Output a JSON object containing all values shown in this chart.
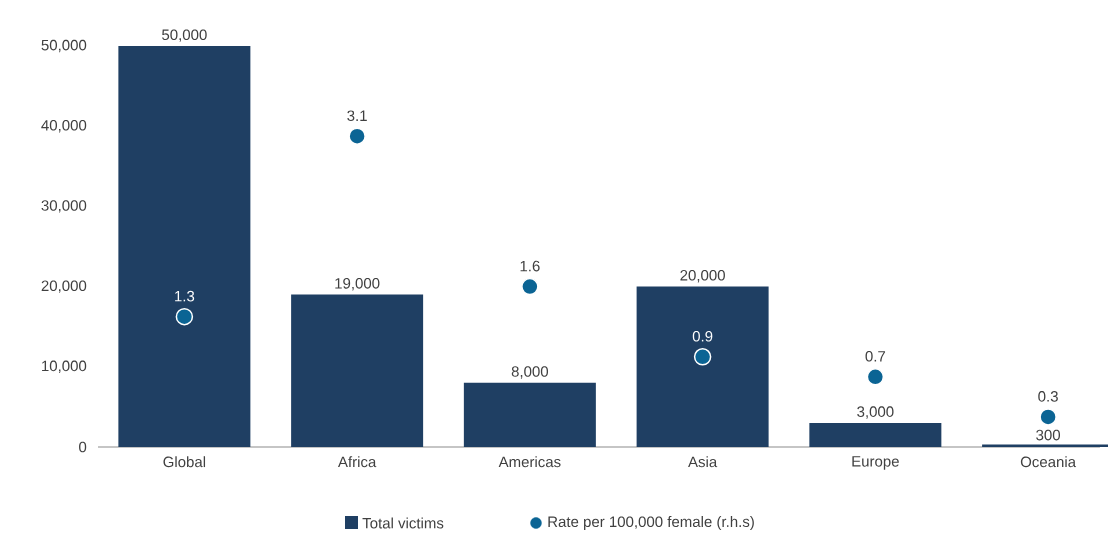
{
  "chart_data": {
    "type": "bar",
    "categories": [
      "Global",
      "Africa",
      "Americas",
      "Asia",
      "Europe",
      "Oceania"
    ],
    "series": [
      {
        "name": "Total victims",
        "color": "#1f3f63",
        "values": [
          50000,
          19000,
          8000,
          20000,
          3000,
          300
        ],
        "value_labels": [
          "50,000",
          "19,000",
          "8,000",
          "20,000",
          "3,000",
          "300"
        ]
      },
      {
        "name": "Rate per 100,000 female (r.h.s)",
        "type": "scatter",
        "axis": "y2",
        "color": "#0b6494",
        "values": [
          1.3,
          3.1,
          1.6,
          0.9,
          0.7,
          0.3
        ],
        "value_labels": [
          "1.3",
          "3.1",
          "1.6",
          "0.9",
          "0.7",
          "0.3"
        ]
      }
    ],
    "ylim": [
      0,
      50000
    ],
    "yticks": [
      0,
      {
        "value": 10000,
        "label": "10,000"
      },
      {
        "value": 20000,
        "label": "20,000"
      },
      {
        "value": 30000,
        "label": "30,000"
      },
      {
        "value": 40000,
        "label": "40,000"
      },
      {
        "value": 50000,
        "label": "50,000"
      }
    ],
    "y2lim": [
      0,
      4
    ],
    "legend": "bottom",
    "marker": "circle",
    "grid": false
  }
}
